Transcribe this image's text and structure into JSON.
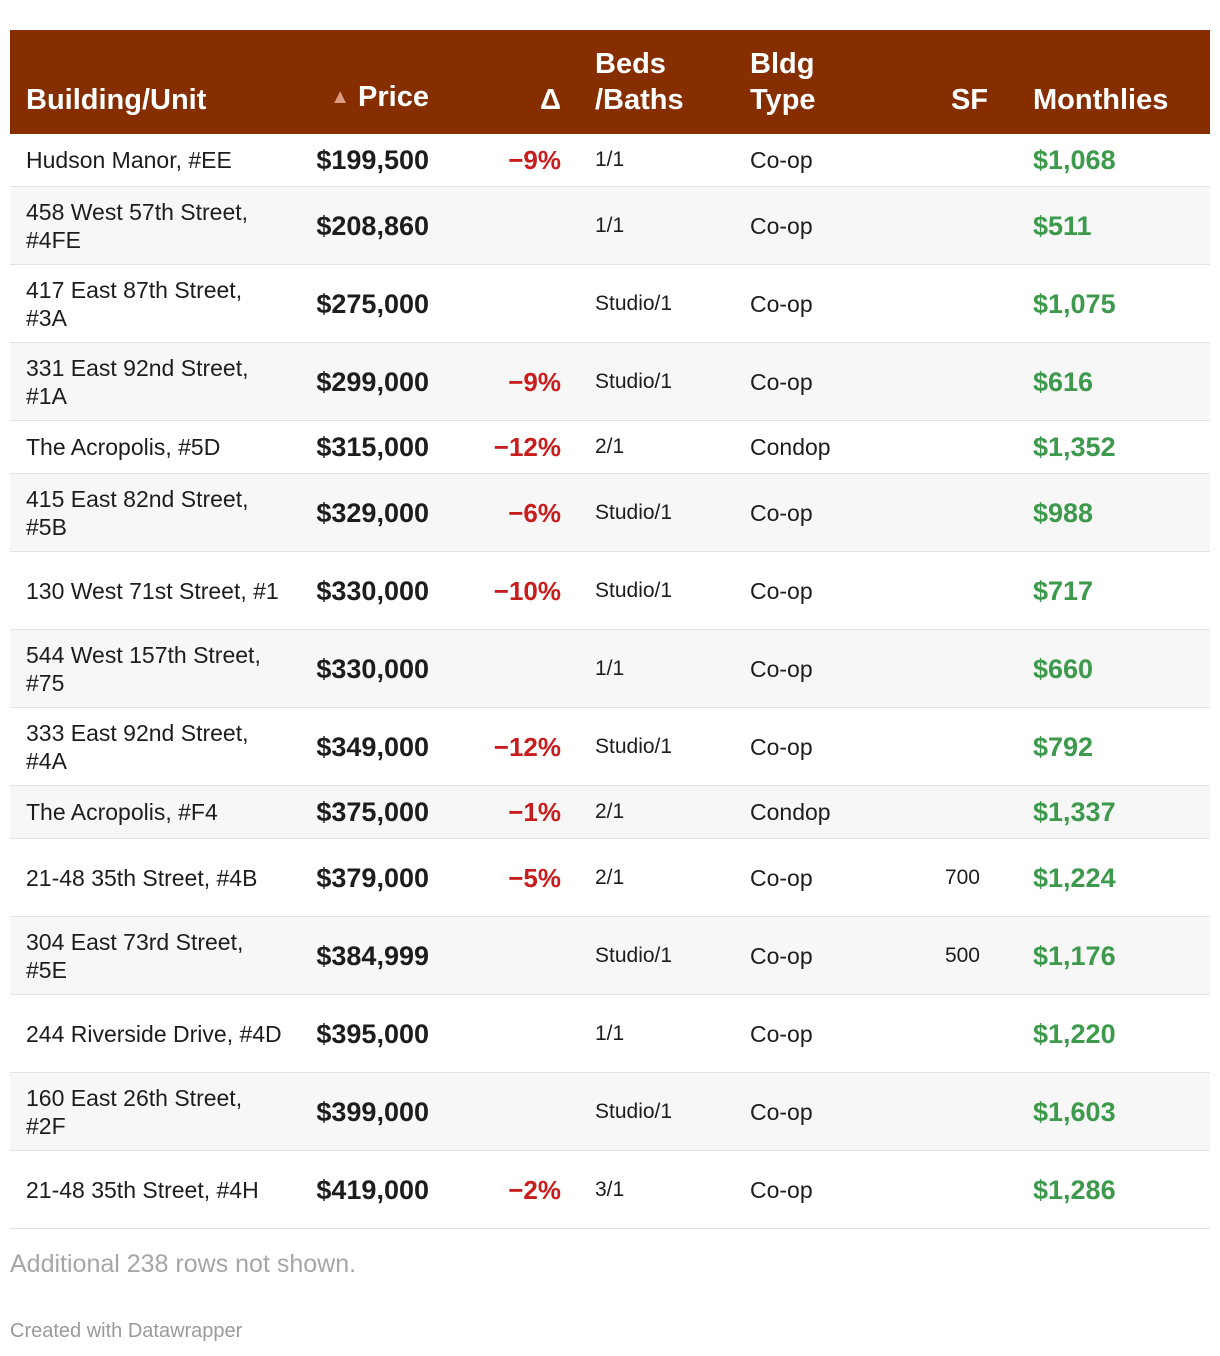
{
  "chart_data": {
    "type": "table",
    "columns": {
      "building": "Building/Unit",
      "price": "Price",
      "delta": "Δ",
      "beds_line1": "Beds",
      "beds_line2": "/Baths",
      "type_line1": "Bldg",
      "type_line2": "Type",
      "sf": "SF",
      "monthlies": "Monthlies"
    },
    "sort_icon": "sort-ascending-triangle",
    "rows": [
      {
        "building": "Hudson Manor, #EE",
        "price": "$199,500",
        "delta": "−9%",
        "beds": "1/1",
        "type": "Co-op",
        "sf": "",
        "monthlies": "$1,068"
      },
      {
        "building": "458 West 57th Street, #4FE",
        "price": "$208,860",
        "delta": "",
        "beds": "1/1",
        "type": "Co-op",
        "sf": "",
        "monthlies": "$511"
      },
      {
        "building": "417 East 87th Street, #3A",
        "price": "$275,000",
        "delta": "",
        "beds": "Studio/1",
        "type": "Co-op",
        "sf": "",
        "monthlies": "$1,075"
      },
      {
        "building": "331 East 92nd Street, #1A",
        "price": "$299,000",
        "delta": "−9%",
        "beds": "Studio/1",
        "type": "Co-op",
        "sf": "",
        "monthlies": "$616"
      },
      {
        "building": "The Acropolis, #5D",
        "price": "$315,000",
        "delta": "−12%",
        "beds": "2/1",
        "type": "Condop",
        "sf": "",
        "monthlies": "$1,352"
      },
      {
        "building": "415 East 82nd Street, #5B",
        "price": "$329,000",
        "delta": "−6%",
        "beds": "Studio/1",
        "type": "Co-op",
        "sf": "",
        "monthlies": "$988"
      },
      {
        "building": "130 West 71st Street, #1",
        "price": "$330,000",
        "delta": "−10%",
        "beds": "Studio/1",
        "type": "Co-op",
        "sf": "",
        "monthlies": "$717"
      },
      {
        "building": "544 West 157th Street, #75",
        "price": "$330,000",
        "delta": "",
        "beds": "1/1",
        "type": "Co-op",
        "sf": "",
        "monthlies": "$660"
      },
      {
        "building": "333 East 92nd Street, #4A",
        "price": "$349,000",
        "delta": "−12%",
        "beds": "Studio/1",
        "type": "Co-op",
        "sf": "",
        "monthlies": "$792"
      },
      {
        "building": "The Acropolis, #F4",
        "price": "$375,000",
        "delta": "−1%",
        "beds": "2/1",
        "type": "Condop",
        "sf": "",
        "monthlies": "$1,337"
      },
      {
        "building": "21-48 35th Street, #4B",
        "price": "$379,000",
        "delta": "−5%",
        "beds": "2/1",
        "type": "Co-op",
        "sf": "700",
        "monthlies": "$1,224"
      },
      {
        "building": "304 East 73rd Street, #5E",
        "price": "$384,999",
        "delta": "",
        "beds": "Studio/1",
        "type": "Co-op",
        "sf": "500",
        "monthlies": "$1,176"
      },
      {
        "building": "244 Riverside Drive, #4D",
        "price": "$395,000",
        "delta": "",
        "beds": "1/1",
        "type": "Co-op",
        "sf": "",
        "monthlies": "$1,220"
      },
      {
        "building": "160 East 26th Street, #2F",
        "price": "$399,000",
        "delta": "",
        "beds": "Studio/1",
        "type": "Co-op",
        "sf": "",
        "monthlies": "$1,603"
      },
      {
        "building": "21-48 35th Street, #4H",
        "price": "$419,000",
        "delta": "−2%",
        "beds": "3/1",
        "type": "Co-op",
        "sf": "",
        "monthlies": "$1,286"
      }
    ],
    "colors": {
      "header_bg": "#872e00",
      "delta_negative": "#c91d1d",
      "monthlies": "#3d9a4c"
    }
  },
  "footer": {
    "note": "Additional 238 rows not shown.",
    "credit": "Created with Datawrapper"
  }
}
